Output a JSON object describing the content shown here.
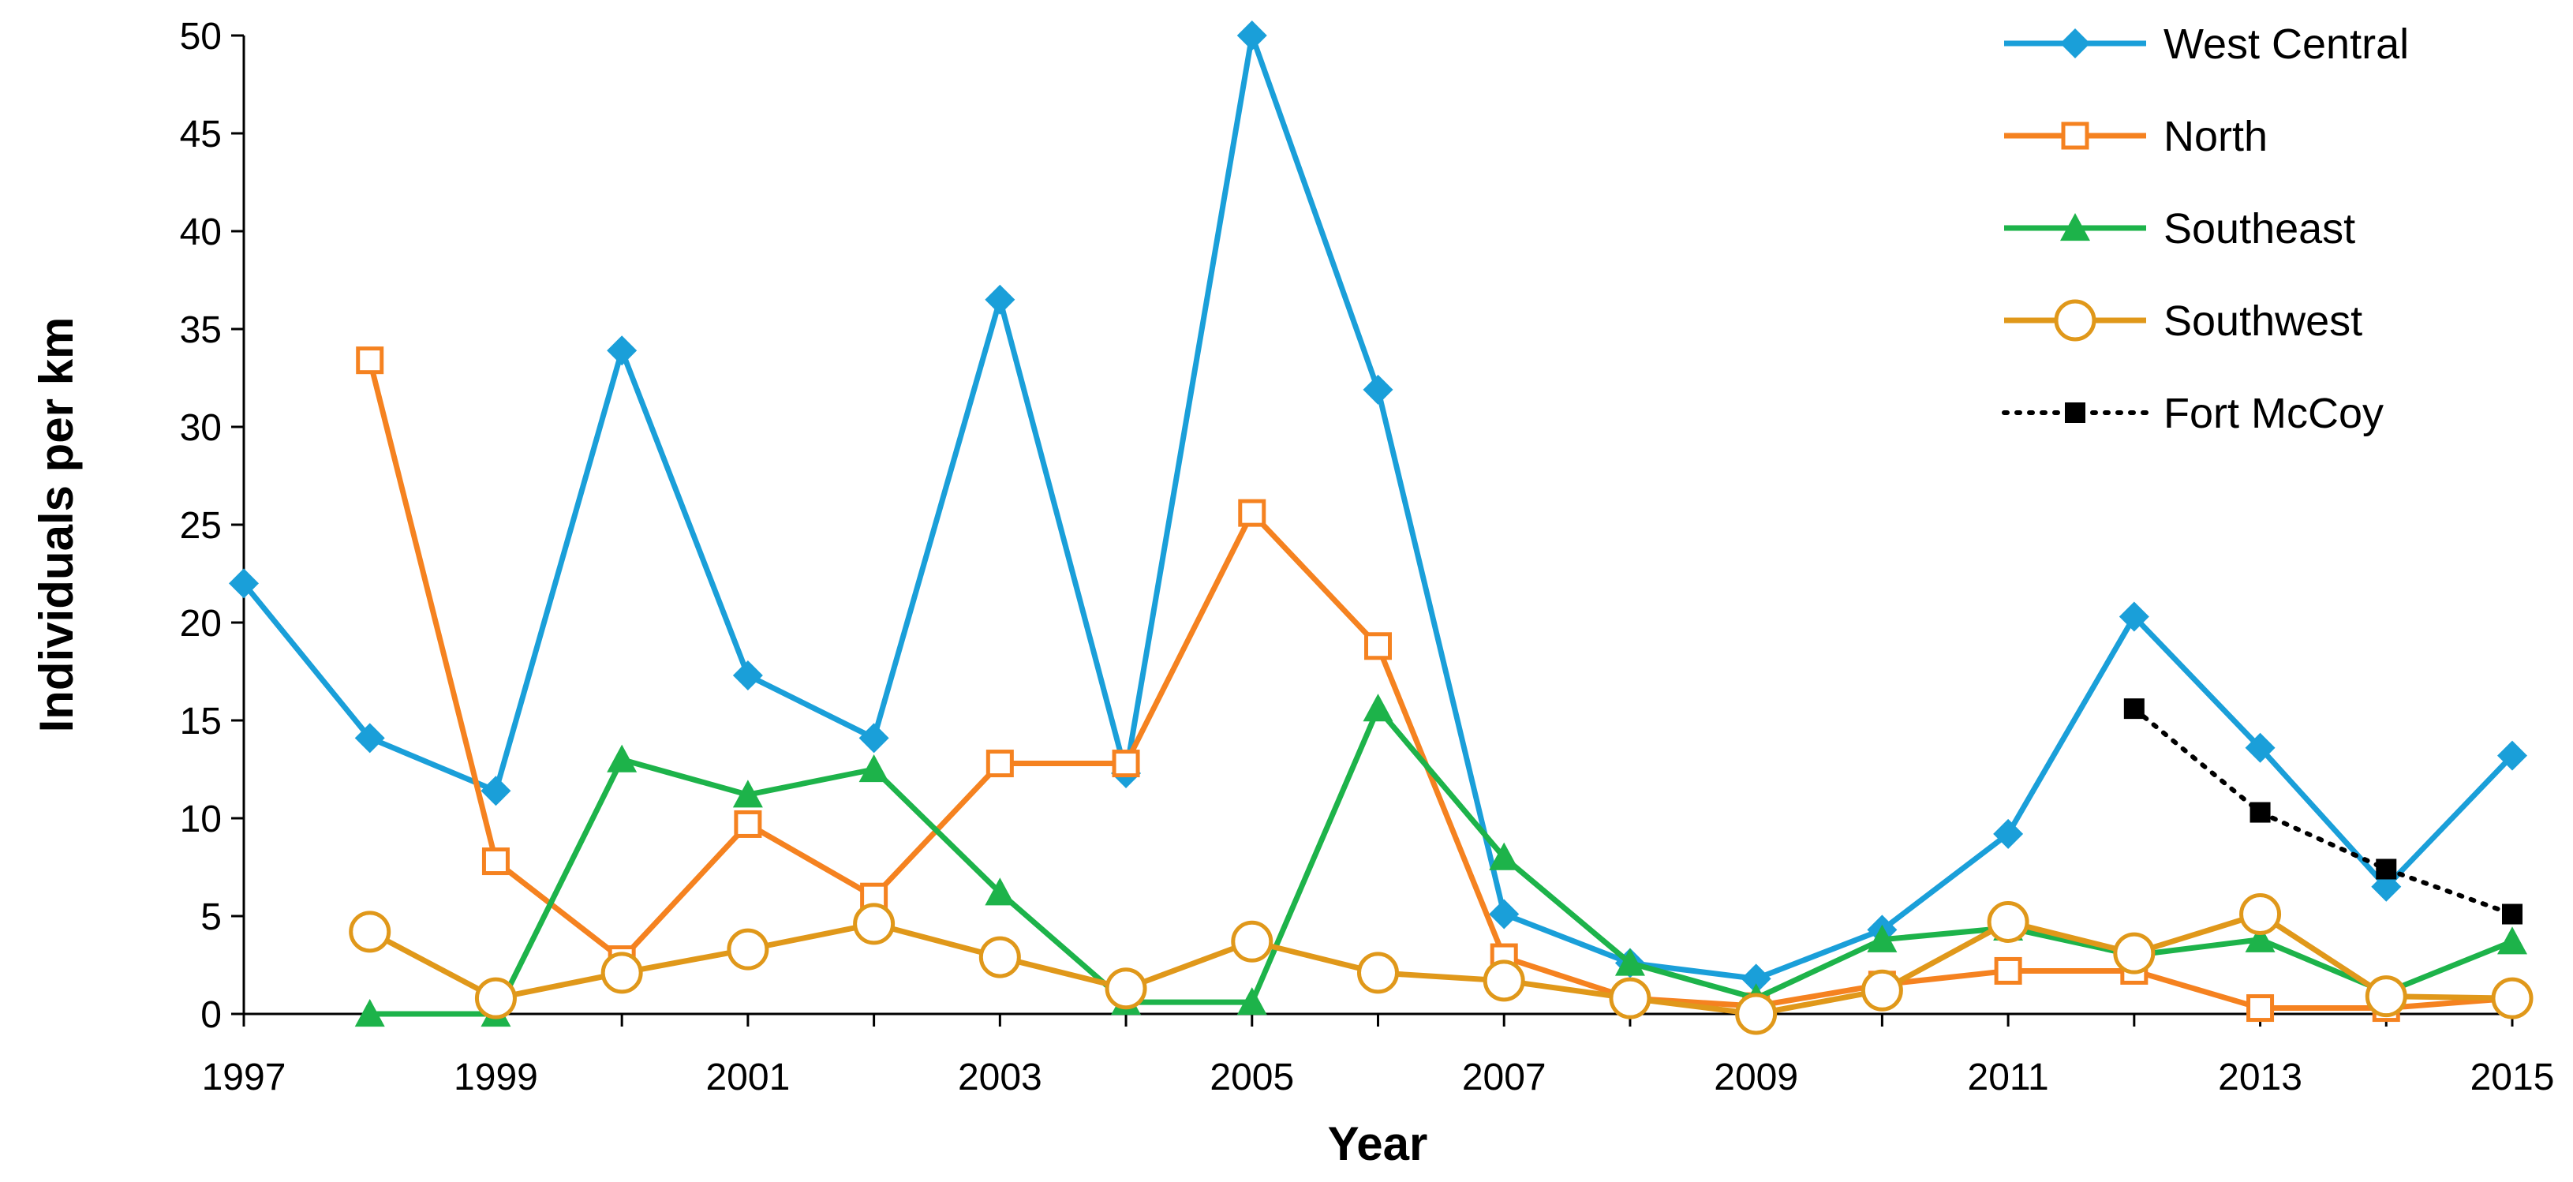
{
  "chart_data": {
    "type": "line",
    "xlabel": "Year",
    "ylabel": "Individuals per km",
    "xlim": [
      1997,
      2015
    ],
    "ylim": [
      0,
      50
    ],
    "x_ticks": [
      "1997",
      "1999",
      "2001",
      "2003",
      "2005",
      "2007",
      "2009",
      "2011",
      "2013",
      "2015"
    ],
    "y_ticks": [
      "0",
      "5",
      "10",
      "15",
      "20",
      "25",
      "30",
      "35",
      "40",
      "45",
      "50"
    ],
    "grid": false,
    "legend_position": "top-right",
    "series": [
      {
        "name": "West Central",
        "color": "#1a9fd9",
        "marker": "diamond",
        "line": "solid",
        "x": [
          1997,
          1998,
          1999,
          2000,
          2001,
          2002,
          2003,
          2004,
          2005,
          2006,
          2007,
          2008,
          2009,
          2010,
          2011,
          2012,
          2013,
          2014,
          2015
        ],
        "values": [
          22.0,
          14.1,
          11.4,
          33.9,
          17.3,
          14.1,
          36.5,
          12.3,
          50.0,
          31.9,
          5.1,
          2.6,
          1.8,
          4.3,
          9.2,
          20.3,
          13.6,
          6.5,
          13.2
        ]
      },
      {
        "name": "North",
        "color": "#f58220",
        "marker": "square-open",
        "line": "solid",
        "x": [
          1998,
          1999,
          2000,
          2001,
          2002,
          2003,
          2004,
          2005,
          2006,
          2007,
          2008,
          2009,
          2010,
          2011,
          2012,
          2013,
          2014,
          2015
        ],
        "values": [
          33.4,
          7.8,
          2.8,
          9.7,
          6.0,
          12.8,
          12.8,
          25.6,
          18.8,
          2.9,
          0.8,
          0.4,
          1.5,
          2.2,
          2.2,
          0.3,
          0.3,
          0.8
        ]
      },
      {
        "name": "Southeast",
        "color": "#1db34a",
        "marker": "triangle",
        "line": "solid",
        "x": [
          1998,
          1999,
          2000,
          2001,
          2002,
          2003,
          2004,
          2005,
          2006,
          2007,
          2008,
          2009,
          2010,
          2011,
          2012,
          2013,
          2014,
          2015
        ],
        "values": [
          0.0,
          0.0,
          13.0,
          11.2,
          12.5,
          6.2,
          0.6,
          0.6,
          15.6,
          8.0,
          2.6,
          0.8,
          3.8,
          4.4,
          3.0,
          3.8,
          1.1,
          3.7
        ]
      },
      {
        "name": "Southwest",
        "color": "#e0981a",
        "marker": "circle-open",
        "line": "solid",
        "x": [
          1998,
          1999,
          2000,
          2001,
          2002,
          2003,
          2004,
          2005,
          2006,
          2007,
          2008,
          2009,
          2010,
          2011,
          2012,
          2013,
          2014,
          2015
        ],
        "values": [
          4.2,
          0.8,
          2.1,
          3.3,
          4.6,
          2.9,
          1.3,
          3.7,
          2.1,
          1.7,
          0.8,
          0.0,
          1.2,
          4.7,
          3.1,
          5.1,
          0.9,
          0.8
        ]
      },
      {
        "name": "Fort McCoy",
        "color": "#000000",
        "marker": "square",
        "line": "dotted",
        "x": [
          2012,
          2013,
          2014,
          2015
        ],
        "values": [
          15.6,
          10.3,
          7.4,
          5.1
        ]
      }
    ]
  }
}
